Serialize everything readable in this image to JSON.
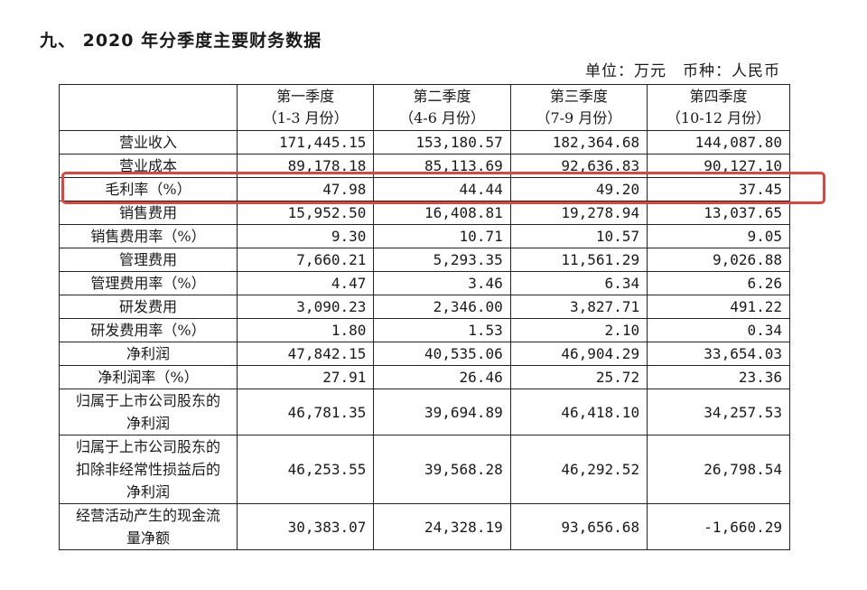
{
  "title": "九、 2020 年分季度主要财务数据",
  "unit": "单位：万元　币种：人民币",
  "highlight_color": "#e0453a",
  "highlighted_row": "毛利率（%）",
  "columns": [
    {
      "name": "第一季度",
      "range": "（1-3 月份）"
    },
    {
      "name": "第二季度",
      "range": "（4-6 月份）"
    },
    {
      "name": "第三季度",
      "range": "（7-9 月份）"
    },
    {
      "name": "第四季度",
      "range": "（10-12 月份）"
    }
  ],
  "rows": [
    {
      "label": "营业收入",
      "values": [
        "171,445.15",
        "153,180.57",
        "182,364.68",
        "144,087.80"
      ]
    },
    {
      "label": "营业成本",
      "values": [
        "89,178.18",
        "85,113.69",
        "92,636.83",
        "90,127.10"
      ]
    },
    {
      "label": "毛利率（%）",
      "values": [
        "47.98",
        "44.44",
        "49.20",
        "37.45"
      ]
    },
    {
      "label": "销售费用",
      "values": [
        "15,952.50",
        "16,408.81",
        "19,278.94",
        "13,037.65"
      ]
    },
    {
      "label": "销售费用率（%）",
      "values": [
        "9.30",
        "10.71",
        "10.57",
        "9.05"
      ]
    },
    {
      "label": "管理费用",
      "values": [
        "7,660.21",
        "5,293.35",
        "11,561.29",
        "9,026.88"
      ]
    },
    {
      "label": "管理费用率（%）",
      "values": [
        "4.47",
        "3.46",
        "6.34",
        "6.26"
      ]
    },
    {
      "label": "研发费用",
      "values": [
        "3,090.23",
        "2,346.00",
        "3,827.71",
        "491.22"
      ]
    },
    {
      "label": "研发费用率（%）",
      "values": [
        "1.80",
        "1.53",
        "2.10",
        "0.34"
      ]
    },
    {
      "label": "净利润",
      "values": [
        "47,842.15",
        "40,535.06",
        "46,904.29",
        "33,654.03"
      ]
    },
    {
      "label": "净利润率（%）",
      "values": [
        "27.91",
        "26.46",
        "25.72",
        "23.36"
      ]
    },
    {
      "label": "归属于上市公司股东的净利润",
      "values": [
        "46,781.35",
        "39,694.89",
        "46,418.10",
        "34,257.53"
      ]
    },
    {
      "label": "归属于上市公司股东的扣除非经常性损益后的净利润",
      "values": [
        "46,253.55",
        "39,568.28",
        "46,292.52",
        "26,798.54"
      ]
    },
    {
      "label": "经营活动产生的现金流量净额",
      "values": [
        "30,383.07",
        "24,328.19",
        "93,656.68",
        "-1,660.29"
      ]
    }
  ]
}
